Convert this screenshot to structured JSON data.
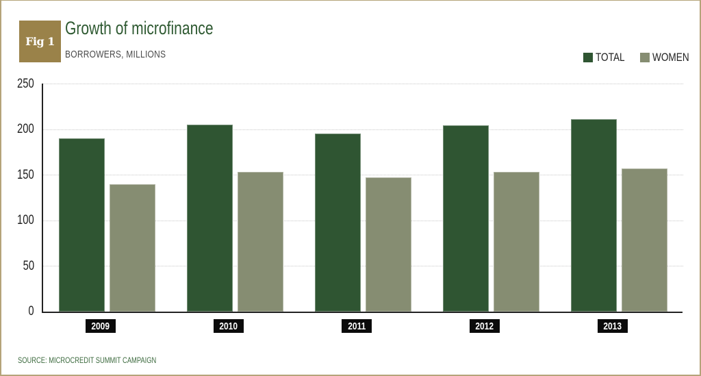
{
  "header": {
    "badge": "Fig 1",
    "title": "Growth of microfinance",
    "subtitle": "BORROWERS, MILLIONS"
  },
  "legend": [
    {
      "label": "TOTAL",
      "color": "#2f5532"
    },
    {
      "label": "WOMEN",
      "color": "#868d72"
    }
  ],
  "y_ticks": [
    "250",
    "200",
    "150",
    "100",
    "50",
    "0"
  ],
  "source": "SOURCE: MICROCREDIT SUMMIT CAMPAIGN",
  "chart_data": {
    "type": "bar",
    "title": "Growth of microfinance",
    "subtitle": "BORROWERS, MILLIONS",
    "xlabel": "",
    "ylabel": "Borrowers, millions",
    "categories": [
      "2009",
      "2010",
      "2011",
      "2012",
      "2013"
    ],
    "series": [
      {
        "name": "TOTAL",
        "color": "#2f5532",
        "values": [
          190,
          205,
          195,
          204,
          211
        ]
      },
      {
        "name": "WOMEN",
        "color": "#868d72",
        "values": [
          140,
          153,
          147,
          153,
          157
        ]
      }
    ],
    "ylim": [
      0,
      250
    ],
    "yticks": [
      0,
      50,
      100,
      150,
      200,
      250
    ],
    "grid": true,
    "grid_style": "dotted horizontal",
    "legend_position": "top-right",
    "source": "SOURCE: MICROCREDIT SUMMIT CAMPAIGN"
  }
}
